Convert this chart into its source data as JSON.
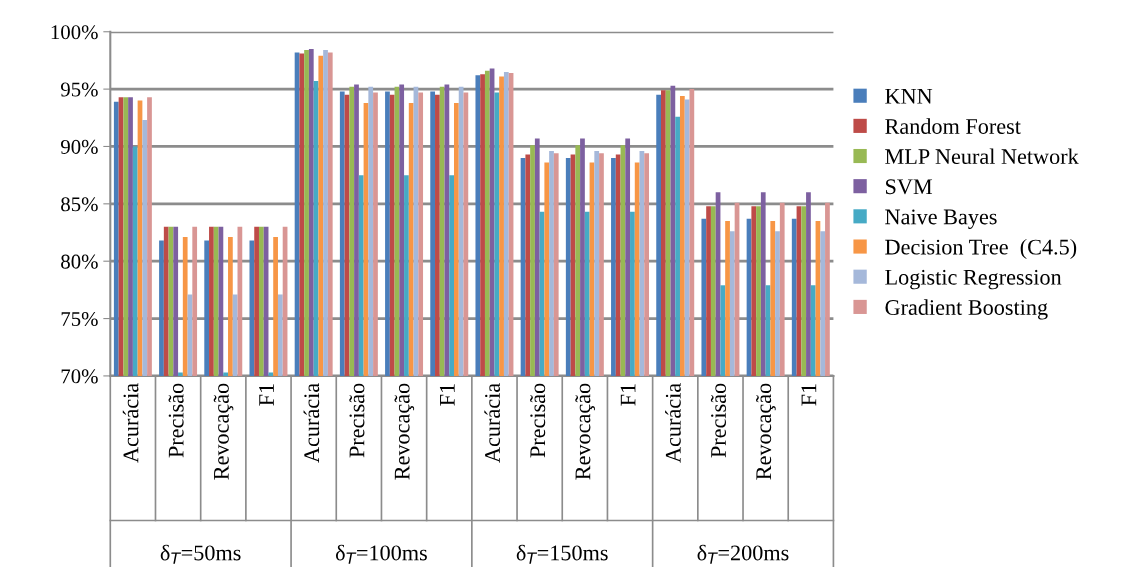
{
  "chart_data": {
    "type": "bar",
    "categories": [
      "Acurácia",
      "Precisão",
      "Revocação",
      "F1",
      "Acurácia",
      "Precisão",
      "Revocação",
      "F1",
      "Acurácia",
      "Precisão",
      "Revocação",
      "F1",
      "Acurácia",
      "Precisão",
      "Revocação",
      "F1"
    ],
    "annotations": [
      "δ$_{T}$=50ms",
      "δ$_{T}$=100ms",
      "δ$_{T}$=150ms",
      "δ$_{T}$=200ms"
    ],
    "series": [
      {
        "name": "KNN",
        "color": "#4a7ebb",
        "values": [
          93.9,
          81.8,
          81.8,
          81.8,
          98.2,
          94.8,
          94.8,
          94.8,
          96.2,
          89.0,
          89.0,
          89.0,
          94.5,
          83.7,
          83.7,
          83.7
        ]
      },
      {
        "name": "Random Forest",
        "color": "#be4b48",
        "values": [
          94.3,
          83.0,
          83.0,
          83.0,
          98.1,
          94.5,
          94.5,
          94.5,
          96.3,
          89.3,
          89.3,
          89.3,
          94.9,
          84.8,
          84.8,
          84.8
        ]
      },
      {
        "name": "MLP Neural Network",
        "color": "#98b954",
        "values": [
          94.3,
          83.0,
          83.0,
          83.0,
          98.4,
          95.2,
          95.2,
          95.2,
          96.6,
          90.1,
          90.1,
          90.1,
          94.9,
          84.8,
          84.8,
          84.8
        ]
      },
      {
        "name": "SVM",
        "color": "#7d60a0",
        "values": [
          94.3,
          83.0,
          83.0,
          83.0,
          98.5,
          95.4,
          95.4,
          95.4,
          96.8,
          90.7,
          90.7,
          90.7,
          95.3,
          86.0,
          86.0,
          86.0
        ]
      },
      {
        "name": "Naive Bayes",
        "color": "#46aac5",
        "values": [
          90.0,
          70.3,
          70.3,
          70.3,
          95.7,
          87.5,
          87.5,
          87.5,
          94.7,
          84.3,
          84.3,
          84.3,
          92.6,
          77.9,
          77.9,
          77.9
        ]
      },
      {
        "name": "Decision Tree  (C4.5)",
        "color": "#f79646",
        "values": [
          94.0,
          82.1,
          82.1,
          82.1,
          97.9,
          93.8,
          93.8,
          93.8,
          96.1,
          88.6,
          88.6,
          88.6,
          94.4,
          83.5,
          83.5,
          83.5
        ]
      },
      {
        "name": "Logistic Regression",
        "color": "#a5b8da",
        "values": [
          92.3,
          77.1,
          77.1,
          77.1,
          98.4,
          95.2,
          95.2,
          95.2,
          96.5,
          89.6,
          89.6,
          89.6,
          94.1,
          82.6,
          82.6,
          82.6
        ]
      },
      {
        "name": "Gradient Boosting",
        "color": "#d99694",
        "values": [
          94.3,
          83.0,
          83.0,
          83.0,
          98.2,
          94.7,
          94.7,
          94.7,
          96.4,
          89.4,
          89.4,
          89.4,
          95.0,
          85.1,
          85.1,
          85.1
        ]
      }
    ],
    "ylim": [
      70,
      100
    ],
    "yticks": [
      {
        "value": 70,
        "label": "70%"
      },
      {
        "value": 75,
        "label": "75%"
      },
      {
        "value": 80,
        "label": "80%"
      },
      {
        "value": 85,
        "label": "85%"
      },
      {
        "value": 90,
        "label": "90%"
      },
      {
        "value": 95,
        "label": "95%"
      },
      {
        "value": 100,
        "label": "100%"
      }
    ],
    "grid": "y",
    "legend": "right"
  }
}
